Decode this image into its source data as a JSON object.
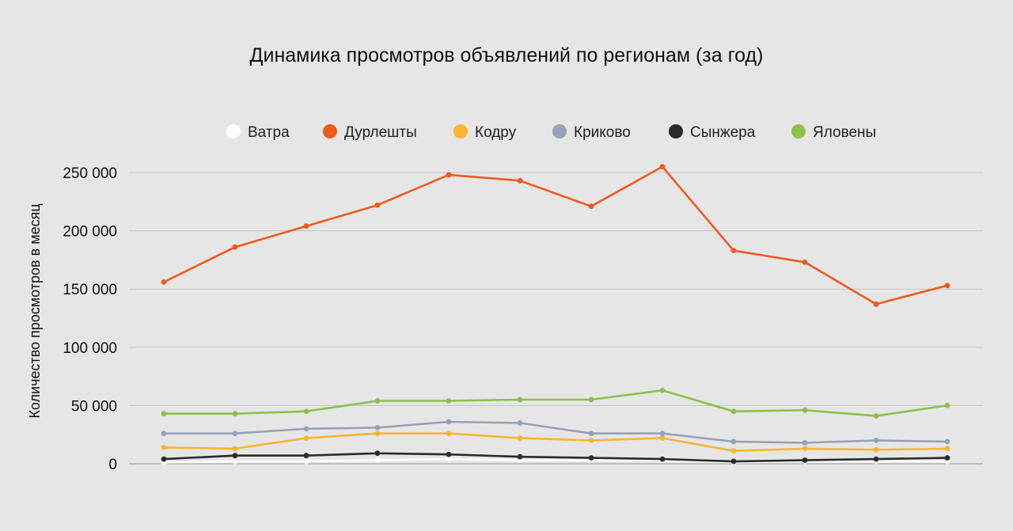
{
  "chart_data": {
    "type": "line",
    "title": "Динамика просмотров объявлений  по регионам (за год)",
    "xlabel": "",
    "ylabel": "Количество просмотров в месяц",
    "ylim": [
      0,
      250000
    ],
    "yticks": [
      0,
      50000,
      100000,
      150000,
      200000,
      250000
    ],
    "ytick_labels": [
      "0",
      "50 000",
      "100 000",
      "150 000",
      "200 000",
      "250 000"
    ],
    "grid": true,
    "legend_position": "top",
    "points_per_series": 12,
    "series": [
      {
        "name": "Ватра",
        "color": "#ffffff",
        "values": [
          1000,
          2000,
          2000,
          3000,
          4000,
          3000,
          3000,
          3000,
          1000,
          2000,
          2000,
          2000
        ]
      },
      {
        "name": "Дурлешты",
        "color": "#f05a1e",
        "values": [
          156000,
          186000,
          204000,
          222000,
          248000,
          243000,
          221000,
          255000,
          183000,
          173000,
          137000,
          153000
        ]
      },
      {
        "name": "Кодру",
        "color": "#fbb534",
        "values": [
          14000,
          13000,
          22000,
          26000,
          26000,
          22000,
          20000,
          22000,
          11000,
          13000,
          12000,
          13000
        ]
      },
      {
        "name": "Криково",
        "color": "#95a3b8",
        "values": [
          26000,
          26000,
          30000,
          31000,
          36000,
          35000,
          26000,
          26000,
          19000,
          18000,
          20000,
          19000
        ]
      },
      {
        "name": "Сынжера",
        "color": "#2b2b2b",
        "values": [
          4000,
          7000,
          7000,
          9000,
          8000,
          6000,
          5000,
          4000,
          2000,
          3000,
          4000,
          5000
        ]
      },
      {
        "name": "Яловены",
        "color": "#8bc34a",
        "values": [
          43000,
          43000,
          45000,
          54000,
          54000,
          55000,
          55000,
          63000,
          45000,
          46000,
          41000,
          50000
        ]
      }
    ]
  }
}
